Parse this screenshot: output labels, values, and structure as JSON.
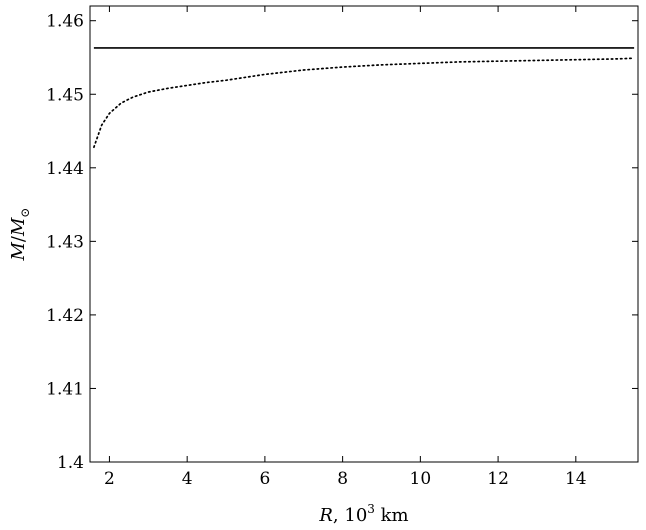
{
  "chart_data": {
    "type": "line",
    "xlabel": "R, 10³ km",
    "ylabel": "M/M⊙",
    "xlabel_parts": {
      "var": "R",
      "rest": ", 10",
      "sup": "3",
      "unit": " km"
    },
    "ylabel_parts": {
      "var": "M",
      "sep": "/",
      "var2": "M",
      "sub": "⊙"
    },
    "xlim": [
      1.5,
      15.6
    ],
    "ylim": [
      1.4,
      1.462
    ],
    "x_ticks": [
      2,
      4,
      6,
      8,
      10,
      12,
      14
    ],
    "y_ticks": [
      1.4,
      1.41,
      1.42,
      1.43,
      1.44,
      1.45,
      1.46
    ],
    "grid": false,
    "series": [
      {
        "style": "solid",
        "color": "#000000",
        "x": [
          1.6,
          15.5
        ],
        "y": [
          1.4563,
          1.4563
        ]
      },
      {
        "style": "dotted",
        "color": "#000000",
        "x": [
          1.6,
          1.8,
          2.0,
          2.3,
          2.6,
          3.0,
          3.5,
          4.0,
          4.5,
          5.0,
          6.0,
          7.0,
          8.0,
          9.0,
          10.0,
          11.0,
          12.0,
          13.0,
          14.0,
          15.0,
          15.5
        ],
        "y": [
          1.4428,
          1.4458,
          1.4474,
          1.4488,
          1.4496,
          1.4503,
          1.4508,
          1.4512,
          1.4516,
          1.4519,
          1.4527,
          1.4533,
          1.4537,
          1.454,
          1.4542,
          1.4544,
          1.4545,
          1.4546,
          1.4547,
          1.4548,
          1.4549
        ]
      }
    ]
  }
}
